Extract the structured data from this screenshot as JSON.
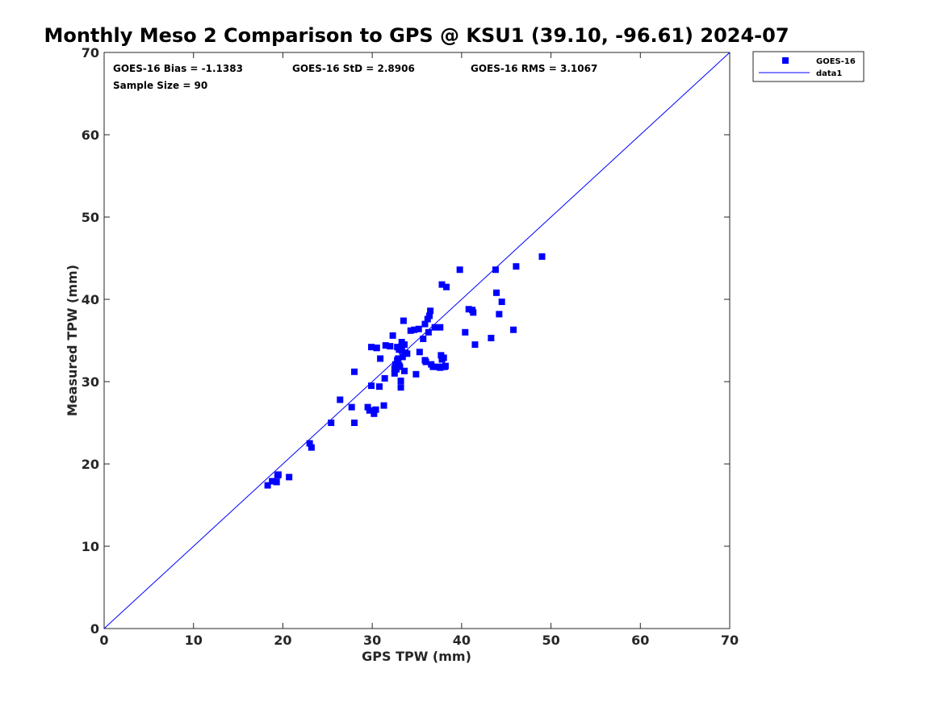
{
  "chart_data": {
    "type": "scatter",
    "title": "Monthly Meso 2 Comparison to GPS @ KSU1 (39.10, -96.61) 2024-07",
    "xlabel": "GPS TPW (mm)",
    "ylabel": "Measured TPW (mm)",
    "xlim": [
      0,
      70
    ],
    "ylim": [
      0,
      70
    ],
    "xticks": [
      "0",
      "10",
      "20",
      "30",
      "40",
      "50",
      "60",
      "70"
    ],
    "yticks": [
      "0",
      "10",
      "20",
      "30",
      "40",
      "50",
      "60",
      "70"
    ],
    "grid": false,
    "legend_position": "top-right",
    "colors": {
      "series": "#0000ff",
      "line": "#0000ff",
      "axis": "#262626"
    },
    "stats": {
      "bias": "GOES-16 Bias = -1.1383",
      "std": "GOES-16 StD = 2.8906",
      "rms": "GOES-16 RMS = 3.1067",
      "sample": "Sample Size = 90"
    },
    "series": [
      {
        "name": "GOES-16",
        "marker": "square",
        "x": [
          18.3,
          18.8,
          19.3,
          19.5,
          19.4,
          20.7,
          23.0,
          23.2,
          25.4,
          26.4,
          27.7,
          28.0,
          28.0,
          29.5,
          29.7,
          29.9,
          30.2,
          30.4,
          30.5,
          30.8,
          30.9,
          31.3,
          31.4,
          29.9,
          30.5,
          31.5,
          32.0,
          32.3,
          32.5,
          32.6,
          32.7,
          32.8,
          32.9,
          33.0,
          33.1,
          33.2,
          33.2,
          33.3,
          33.3,
          33.4,
          33.5,
          33.6,
          33.7,
          33.9,
          32.5,
          32.8,
          33.0,
          33.3,
          33.6,
          34.3,
          34.7,
          35.2,
          35.3,
          35.7,
          35.9,
          36.0,
          36.3,
          36.4,
          36.5,
          36.6,
          36.8,
          35.9,
          36.2,
          37.0,
          37.3,
          37.6,
          37.7,
          37.8,
          37.9,
          38.0,
          38.1,
          38.2,
          34.9,
          37.6,
          37.8,
          38.3,
          39.8,
          40.4,
          40.8,
          41.2,
          41.3,
          41.5,
          43.3,
          43.8,
          43.9,
          44.2,
          44.5,
          45.8,
          46.1,
          49.0
        ],
        "y": [
          17.4,
          17.9,
          17.8,
          18.7,
          18.6,
          18.4,
          22.5,
          22.0,
          25.0,
          27.8,
          26.9,
          31.2,
          25.0,
          26.9,
          26.5,
          29.5,
          26.1,
          26.6,
          34.1,
          29.4,
          32.8,
          27.1,
          30.4,
          34.2,
          34.1,
          34.4,
          34.3,
          35.6,
          31.0,
          32.1,
          31.5,
          34.2,
          32.8,
          32.0,
          31.8,
          30.1,
          29.3,
          34.8,
          33.8,
          33.0,
          37.4,
          31.3,
          33.5,
          33.4,
          31.6,
          32.6,
          33.9,
          34.3,
          34.5,
          36.2,
          36.3,
          36.4,
          33.6,
          35.2,
          32.6,
          32.4,
          36.0,
          38.0,
          38.6,
          32.1,
          31.8,
          37.0,
          37.6,
          36.6,
          31.8,
          31.7,
          33.2,
          32.7,
          31.8,
          32.9,
          31.8,
          31.9,
          30.9,
          36.6,
          41.8,
          41.5,
          43.6,
          36.0,
          38.8,
          38.7,
          38.4,
          34.5,
          35.3,
          43.6,
          40.8,
          38.2,
          39.7,
          36.3,
          44.0,
          45.2
        ]
      },
      {
        "name": "data1",
        "type": "line",
        "x": [
          0,
          70
        ],
        "y": [
          0,
          70
        ]
      }
    ]
  }
}
